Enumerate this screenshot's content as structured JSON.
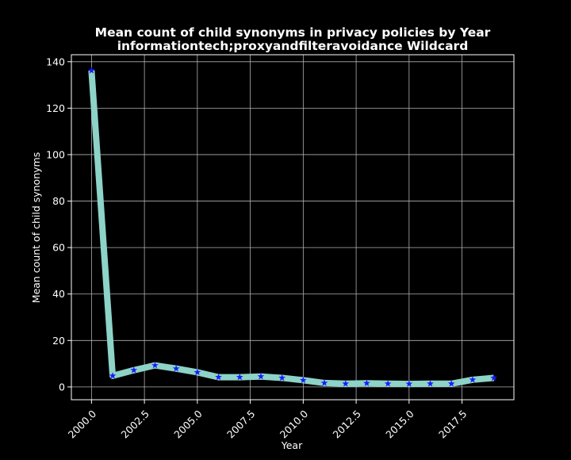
{
  "chart_data": {
    "type": "line",
    "title": "Mean count of child synonyms in privacy policies by Year",
    "subtitle": "informationtech;proxyandfilteravoidance Wildcard",
    "xlabel": "Year",
    "ylabel": "Mean count of child synonyms",
    "xlim": [
      1999.05,
      2019.95
    ],
    "ylim": [
      -5.5,
      143
    ],
    "x_ticks": [
      2000.0,
      2002.5,
      2005.0,
      2007.5,
      2010.0,
      2012.5,
      2015.0,
      2017.5
    ],
    "x_tick_labels": [
      "2000.0",
      "2002.5",
      "2005.0",
      "2007.5",
      "2010.0",
      "2012.5",
      "2015.0",
      "2017.5"
    ],
    "y_ticks": [
      0,
      20,
      40,
      60,
      80,
      100,
      120,
      140
    ],
    "y_tick_labels": [
      "0",
      "20",
      "40",
      "60",
      "80",
      "100",
      "120",
      "140"
    ],
    "grid": true,
    "series": [
      {
        "x": [
          2000,
          2001,
          2002,
          2003,
          2004,
          2005,
          2006,
          2007,
          2008,
          2009,
          2010,
          2011,
          2012,
          2013,
          2014,
          2015,
          2016,
          2017,
          2018,
          2019
        ],
        "values": [
          136.2,
          4.8,
          7.2,
          9.3,
          7.9,
          6.3,
          4.2,
          4.2,
          4.5,
          3.9,
          2.9,
          1.7,
          1.4,
          1.6,
          1.4,
          1.3,
          1.4,
          1.4,
          3.1,
          3.9
        ]
      }
    ],
    "colors": {
      "background": "#000000",
      "line": "#8dd3c7",
      "marker": "#1a1aff",
      "grid": "#b0b0b0",
      "spine": "#ffffff",
      "text": "#ffffff"
    }
  }
}
